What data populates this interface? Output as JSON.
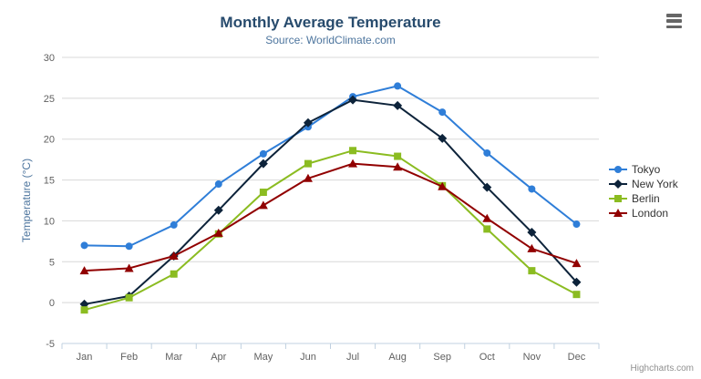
{
  "chart": {
    "credits_label": "Highcharts.com",
    "context_menu_icon": "hamburger-icon",
    "colors": {
      "title": "#274b6d",
      "subtitle": "#4d759e",
      "axis_labels": "#606060",
      "axis_title": "#4d759e",
      "gridline": "#d8d8d8",
      "axis_line": "#c0d0e0",
      "legend_text": "#333333",
      "credits_text": "#909090"
    }
  },
  "chart_data": {
    "type": "line",
    "title": "Monthly Average Temperature",
    "subtitle": "Source: WorldClimate.com",
    "xlabel": "",
    "ylabel": "Temperature (°C)",
    "ylim": [
      -5,
      30
    ],
    "ytick_step": 5,
    "grid": true,
    "legend_position": "right",
    "categories": [
      "Jan",
      "Feb",
      "Mar",
      "Apr",
      "May",
      "Jun",
      "Jul",
      "Aug",
      "Sep",
      "Oct",
      "Nov",
      "Dec"
    ],
    "series": [
      {
        "name": "Tokyo",
        "color": "#2f7ed8",
        "marker": "circle",
        "values": [
          7.0,
          6.9,
          9.5,
          14.5,
          18.2,
          21.5,
          25.2,
          26.5,
          23.3,
          18.3,
          13.9,
          9.6
        ]
      },
      {
        "name": "New York",
        "color": "#0d233a",
        "marker": "diamond",
        "values": [
          -0.2,
          0.8,
          5.7,
          11.3,
          17.0,
          22.0,
          24.8,
          24.1,
          20.1,
          14.1,
          8.6,
          2.5
        ]
      },
      {
        "name": "Berlin",
        "color": "#8bbc21",
        "marker": "square",
        "values": [
          -0.9,
          0.6,
          3.5,
          8.4,
          13.5,
          17.0,
          18.6,
          17.9,
          14.3,
          9.0,
          3.9,
          1.0
        ]
      },
      {
        "name": "London",
        "color": "#910000",
        "marker": "triangle",
        "values": [
          3.9,
          4.2,
          5.7,
          8.5,
          11.9,
          15.2,
          17.0,
          16.6,
          14.2,
          10.3,
          6.6,
          4.8
        ]
      }
    ]
  }
}
